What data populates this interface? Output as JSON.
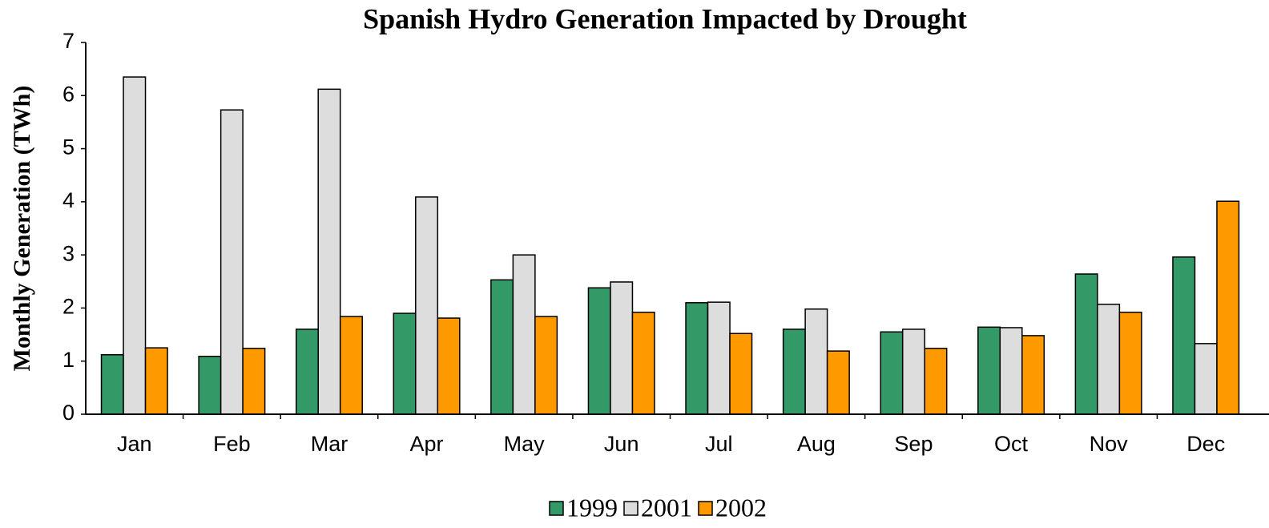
{
  "chart_data": {
    "type": "bar",
    "title": "Spanish Hydro Generation Impacted by Drought",
    "y_label": "Monthly Generation (TWh)",
    "categories": [
      "Jan",
      "Feb",
      "Mar",
      "Apr",
      "May",
      "Jun",
      "Jul",
      "Aug",
      "Sep",
      "Oct",
      "Nov",
      "Dec"
    ],
    "series": [
      {
        "name": "1999",
        "color": "#339966",
        "values": [
          1.12,
          1.09,
          1.6,
          1.9,
          2.53,
          2.38,
          2.1,
          1.6,
          1.55,
          1.64,
          2.64,
          2.96
        ]
      },
      {
        "name": "2001",
        "color": "#dddddd",
        "values": [
          6.35,
          5.73,
          6.12,
          4.09,
          3.0,
          2.49,
          2.11,
          1.98,
          1.6,
          1.63,
          2.07,
          1.33
        ]
      },
      {
        "name": "2002",
        "color": "#ff9900",
        "values": [
          1.25,
          1.24,
          1.84,
          1.81,
          1.84,
          1.92,
          1.52,
          1.19,
          1.24,
          1.48,
          1.92,
          4.01
        ]
      }
    ],
    "ylim": [
      0,
      7
    ],
    "yticks": [
      0,
      1,
      2,
      3,
      4,
      5,
      6,
      7
    ],
    "legend": "bottom"
  }
}
